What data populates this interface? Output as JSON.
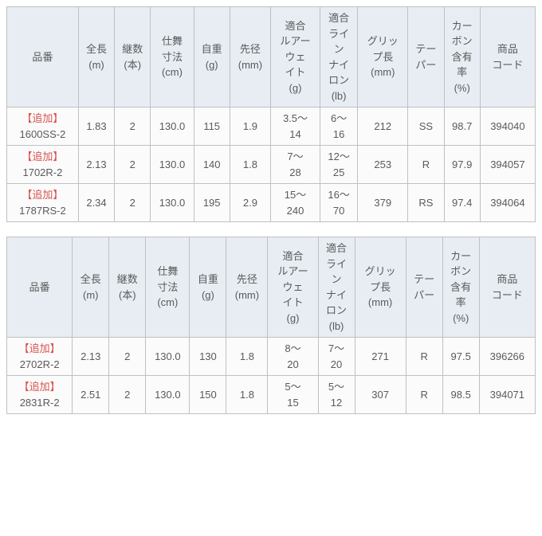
{
  "columns": [
    "品番",
    "全長\n(m)",
    "継数\n(本)",
    "仕舞\n寸法\n(cm)",
    "自重\n(g)",
    "先径\n(mm)",
    "適合\nルアー\nウェ\nイト\n(g)",
    "適合\nライ\nン\nナイ\nロン\n(lb)",
    "グリッ\nプ長\n(mm)",
    "テー\nパー",
    "カー\nボン\n含有\n率\n(%)",
    "商品\nコード"
  ],
  "tables": [
    {
      "rows": [
        {
          "tag": "【追加】",
          "code": "1600SS-2",
          "cells": [
            "1.83",
            "2",
            "130.0",
            "115",
            "1.9",
            "3.5～\n14",
            "6～\n16",
            "212",
            "SS",
            "98.7",
            "394040"
          ]
        },
        {
          "tag": "【追加】",
          "code": "1702R-2",
          "cells": [
            "2.13",
            "2",
            "130.0",
            "140",
            "1.8",
            "7～\n28",
            "12～\n25",
            "253",
            "R",
            "97.9",
            "394057"
          ]
        },
        {
          "tag": "【追加】",
          "code": "1787RS-2",
          "cells": [
            "2.34",
            "2",
            "130.0",
            "195",
            "2.9",
            "15～\n240",
            "16～\n70",
            "379",
            "RS",
            "97.4",
            "394064"
          ]
        }
      ]
    },
    {
      "rows": [
        {
          "tag": "【追加】",
          "code": "2702R-2",
          "cells": [
            "2.13",
            "2",
            "130.0",
            "130",
            "1.8",
            "8～\n20",
            "7～\n20",
            "271",
            "R",
            "97.5",
            "396266"
          ]
        },
        {
          "tag": "【追加】",
          "code": "2831R-2",
          "cells": [
            "2.51",
            "2",
            "130.0",
            "150",
            "1.8",
            "5～\n15",
            "5～\n12",
            "307",
            "R",
            "98.5",
            "394071"
          ]
        }
      ]
    }
  ]
}
